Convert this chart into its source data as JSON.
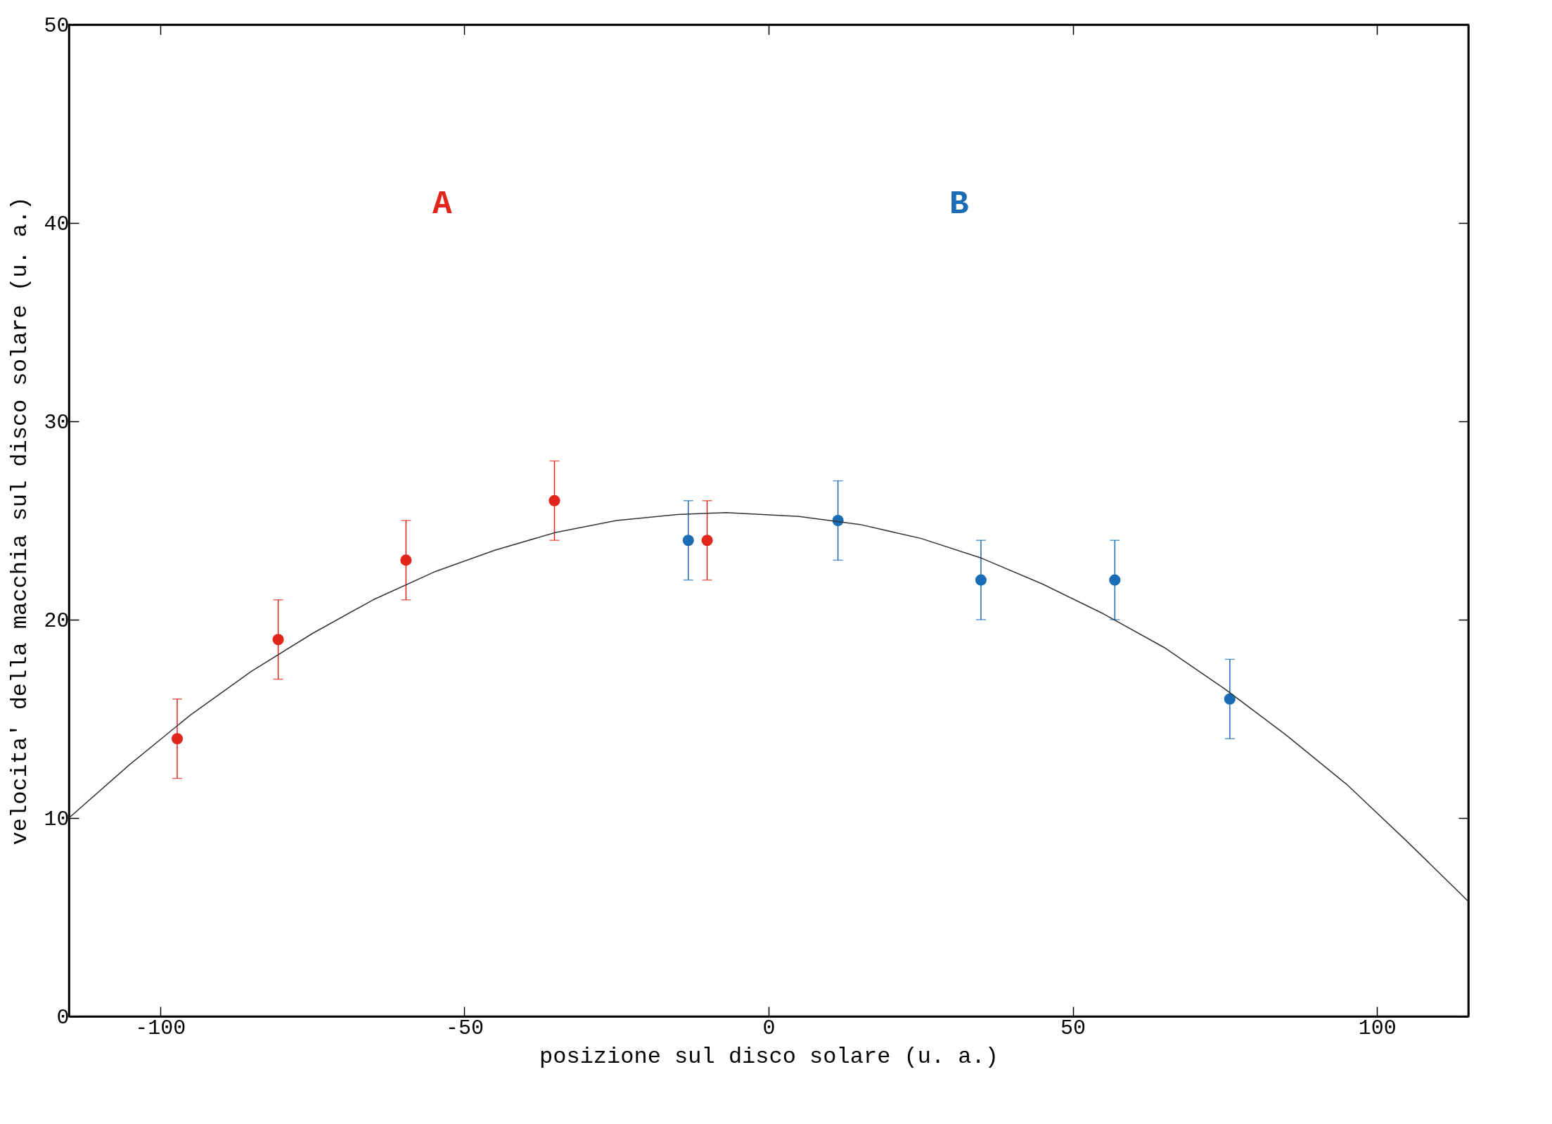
{
  "chart_data": {
    "type": "scatter",
    "xlabel": "posizione sul disco solare (u. a.)",
    "ylabel": "velocita' della macchia sul disco solare (u. a.)",
    "xlim": [
      -115,
      115
    ],
    "xticks": [
      -100,
      -50,
      0,
      50,
      100
    ],
    "ylim": [
      0,
      50
    ],
    "yticks": [
      0,
      10,
      20,
      30,
      40,
      50
    ],
    "grid": false,
    "marker": "circle",
    "series": [
      {
        "name": "A",
        "color": "#e3261c",
        "x": [
          -97.2,
          -80.6,
          -59.6,
          -35.2,
          -10.1
        ],
        "values": [
          14,
          19,
          23,
          26,
          24
        ],
        "errors": [
          2,
          2,
          2,
          2,
          2
        ]
      },
      {
        "name": "B",
        "color": "#1a6db4",
        "x": [
          -13.2,
          11.4,
          34.9,
          56.9,
          75.8
        ],
        "values": [
          24,
          25,
          22,
          22,
          16
        ],
        "errors": [
          2,
          2,
          2,
          2,
          2
        ]
      },
      {
        "type": "line",
        "color": "#333333",
        "marker": "none",
        "x": [
          -115,
          -105,
          -95,
          -85,
          -75,
          -65,
          -55,
          -45,
          -35,
          -25,
          -15,
          -7,
          5,
          15,
          25,
          35,
          45,
          55,
          65,
          75,
          85,
          95,
          105,
          115
        ],
        "values": [
          10.0,
          12.7,
          15.2,
          17.4,
          19.3,
          21.0,
          22.4,
          23.5,
          24.4,
          25.0,
          25.3,
          25.4,
          25.2,
          24.8,
          24.1,
          23.1,
          21.8,
          20.3,
          18.6,
          16.5,
          14.2,
          11.7,
          8.8,
          5.8
        ]
      }
    ]
  }
}
